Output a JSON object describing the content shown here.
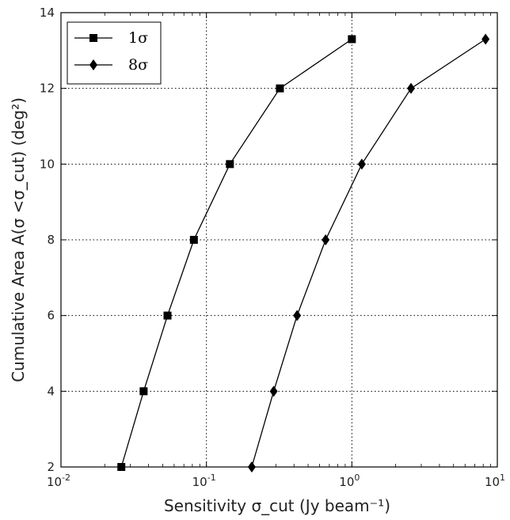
{
  "chart_data": {
    "type": "line",
    "xscale": "log",
    "xlim": [
      0.01,
      10
    ],
    "ylim": [
      2,
      14
    ],
    "xticks": [
      {
        "value": 0.01,
        "base": "10",
        "exp": "-2"
      },
      {
        "value": 0.1,
        "base": "10",
        "exp": "-1"
      },
      {
        "value": 1,
        "base": "10",
        "exp": "0"
      },
      {
        "value": 10,
        "base": "10",
        "exp": "1"
      }
    ],
    "yticks": [
      2,
      4,
      6,
      8,
      10,
      12,
      14
    ],
    "ytick_labels": [
      "2",
      "4",
      "6",
      "8",
      "10",
      "12",
      "14"
    ],
    "grid": true,
    "grid_style": "dotted",
    "legend_position": "top-left",
    "xlabel": "Sensitivity σ_cut (Jy beam⁻¹)",
    "ylabel": "Cumulative Area A(σ <σ_cut) (deg²)",
    "series": [
      {
        "name": "1σ",
        "marker": "square",
        "color": "#000000",
        "x": [
          0.026,
          0.037,
          0.054,
          0.082,
          0.145,
          0.32,
          1.0
        ],
        "y": [
          2,
          4,
          6,
          8,
          10,
          12,
          13.3
        ]
      },
      {
        "name": "8σ",
        "marker": "diamond",
        "color": "#000000",
        "x": [
          0.205,
          0.29,
          0.42,
          0.66,
          1.17,
          2.55,
          8.3
        ],
        "y": [
          2,
          4,
          6,
          8,
          10,
          12,
          13.3
        ]
      }
    ]
  }
}
